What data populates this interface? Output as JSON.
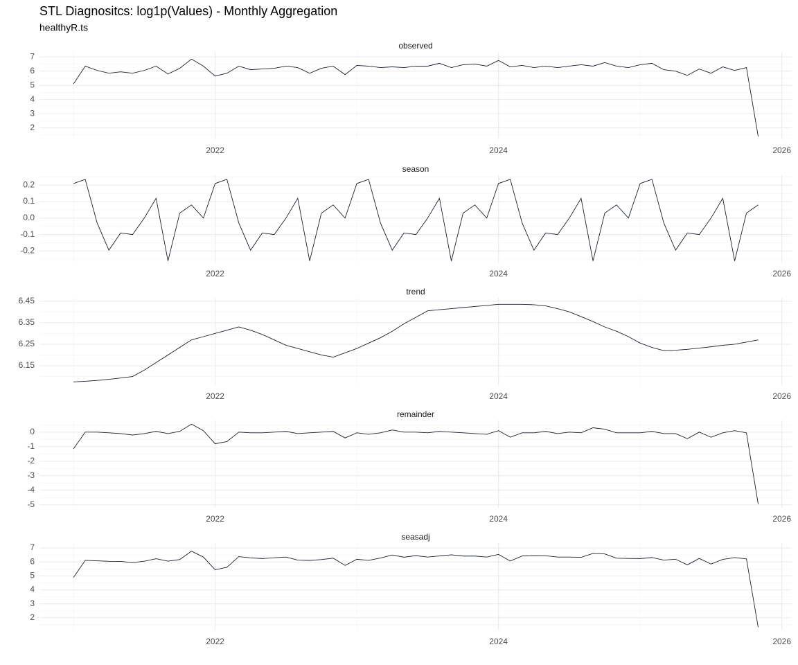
{
  "chart_data": {
    "type": "line",
    "title": "STL Diagnositcs: log1p(Values) - Monthly Aggregation",
    "subtitle": "healthyR.ts",
    "x": [
      2021,
      2021.083,
      2021.167,
      2021.25,
      2021.333,
      2021.417,
      2021.5,
      2021.583,
      2021.667,
      2021.75,
      2021.833,
      2021.917,
      2022,
      2022.083,
      2022.167,
      2022.25,
      2022.333,
      2022.417,
      2022.5,
      2022.583,
      2022.667,
      2022.75,
      2022.833,
      2022.917,
      2023,
      2023.083,
      2023.167,
      2023.25,
      2023.333,
      2023.417,
      2023.5,
      2023.583,
      2023.667,
      2023.75,
      2023.833,
      2023.917,
      2024,
      2024.083,
      2024.167,
      2024.25,
      2024.333,
      2024.417,
      2024.5,
      2024.583,
      2024.667,
      2024.75,
      2024.833,
      2024.917,
      2025,
      2025.083,
      2025.167,
      2025.25,
      2025.333,
      2025.417,
      2025.5,
      2025.583,
      2025.667,
      2025.75,
      2025.833
    ],
    "xlim": [
      2020.76,
      2026.07
    ],
    "xticks": [
      2022,
      2024,
      2026
    ],
    "grid": true,
    "series": [
      {
        "name": "observed",
        "color": "#17202a",
        "values": [
          5.1,
          6.35,
          6.05,
          5.85,
          5.95,
          5.85,
          6.05,
          6.35,
          5.8,
          6.2,
          6.85,
          6.35,
          5.65,
          5.85,
          6.35,
          6.1,
          6.15,
          6.2,
          6.35,
          6.25,
          5.85,
          6.2,
          6.35,
          5.75,
          6.4,
          6.35,
          6.25,
          6.3,
          6.25,
          6.35,
          6.35,
          6.55,
          6.25,
          6.45,
          6.5,
          6.35,
          6.75,
          6.3,
          6.4,
          6.25,
          6.35,
          6.25,
          6.35,
          6.45,
          6.35,
          6.6,
          6.35,
          6.25,
          6.45,
          6.55,
          6.1,
          6.0,
          5.7,
          6.15,
          5.85,
          6.3,
          6.05,
          6.25,
          1.4
        ],
        "ylim": [
          1.2,
          7.35
        ],
        "yticks": [
          2,
          3,
          4,
          5,
          6,
          7
        ]
      },
      {
        "name": "season",
        "color": "#17202a",
        "values": [
          0.21,
          0.235,
          -0.03,
          -0.195,
          -0.09,
          -0.1,
          0.0,
          0.12,
          -0.26,
          0.03,
          0.08,
          0.0,
          0.21,
          0.235,
          -0.03,
          -0.195,
          -0.09,
          -0.1,
          0.0,
          0.12,
          -0.26,
          0.03,
          0.08,
          0.0,
          0.21,
          0.235,
          -0.03,
          -0.195,
          -0.09,
          -0.1,
          0.0,
          0.12,
          -0.26,
          0.03,
          0.08,
          0.0,
          0.21,
          0.235,
          -0.03,
          -0.195,
          -0.09,
          -0.1,
          0.0,
          0.12,
          -0.26,
          0.03,
          0.08,
          0.0,
          0.21,
          0.235,
          -0.03,
          -0.195,
          -0.09,
          -0.1,
          0.0,
          0.12,
          -0.26,
          0.03,
          0.08
        ],
        "ylim": [
          -0.27,
          0.26
        ],
        "yticks": [
          -0.2,
          -0.1,
          {
            "value": 0,
            "label": "0.0"
          },
          0.1,
          0.2
        ]
      },
      {
        "name": "trend",
        "color": "#17202a",
        "values": [
          6.075,
          6.078,
          6.082,
          6.087,
          6.093,
          6.1,
          6.13,
          6.165,
          6.2,
          6.235,
          6.27,
          6.285,
          6.3,
          6.315,
          6.33,
          6.315,
          6.295,
          6.27,
          6.245,
          6.23,
          6.215,
          6.2,
          6.19,
          6.21,
          6.23,
          6.255,
          6.28,
          6.31,
          6.345,
          6.375,
          6.405,
          6.41,
          6.415,
          6.42,
          6.425,
          6.43,
          6.435,
          6.435,
          6.435,
          6.433,
          6.428,
          6.415,
          6.4,
          6.378,
          6.355,
          6.33,
          6.31,
          6.285,
          6.255,
          6.235,
          6.22,
          6.222,
          6.226,
          6.232,
          6.238,
          6.245,
          6.25,
          6.26,
          6.27
        ],
        "ylim": [
          6.06,
          6.465
        ],
        "yticks": [
          6.15,
          6.25,
          6.35,
          6.45
        ]
      },
      {
        "name": "remainder",
        "color": "#17202a",
        "values": [
          -1.15,
          0.0,
          0.0,
          -0.05,
          -0.1,
          -0.2,
          -0.1,
          0.05,
          -0.1,
          0.05,
          0.55,
          0.1,
          -0.8,
          -0.65,
          0.0,
          -0.05,
          -0.05,
          0.0,
          0.05,
          -0.1,
          -0.05,
          0.0,
          0.05,
          -0.4,
          -0.05,
          -0.15,
          -0.05,
          0.15,
          0.0,
          0.0,
          -0.05,
          0.05,
          0.0,
          -0.05,
          -0.1,
          -0.15,
          0.1,
          -0.35,
          -0.05,
          -0.05,
          0.05,
          -0.1,
          0.0,
          -0.05,
          0.3,
          0.2,
          -0.05,
          -0.05,
          -0.05,
          0.05,
          -0.1,
          -0.1,
          -0.45,
          0.0,
          -0.35,
          -0.05,
          0.1,
          -0.05,
          -4.95
        ],
        "ylim": [
          -5.2,
          0.8
        ],
        "yticks": [
          -5,
          -4,
          -3,
          -2,
          -1,
          0
        ]
      },
      {
        "name": "seasadj",
        "color": "#17202a",
        "values": [
          4.89,
          6.115,
          6.08,
          6.045,
          6.04,
          5.95,
          6.05,
          6.23,
          6.06,
          6.17,
          6.77,
          6.35,
          5.44,
          5.615,
          6.38,
          6.295,
          6.24,
          6.3,
          6.35,
          6.13,
          6.11,
          6.17,
          6.27,
          5.75,
          6.19,
          6.115,
          6.28,
          6.495,
          6.34,
          6.45,
          6.35,
          6.43,
          6.51,
          6.42,
          6.42,
          6.35,
          6.54,
          6.065,
          6.43,
          6.445,
          6.44,
          6.35,
          6.35,
          6.33,
          6.61,
          6.57,
          6.27,
          6.25,
          6.24,
          6.315,
          6.13,
          6.195,
          5.79,
          6.25,
          5.85,
          6.18,
          6.31,
          6.22,
          1.32
        ],
        "ylim": [
          1.1,
          7.35
        ],
        "yticks": [
          2,
          3,
          4,
          5,
          6,
          7
        ]
      }
    ]
  }
}
